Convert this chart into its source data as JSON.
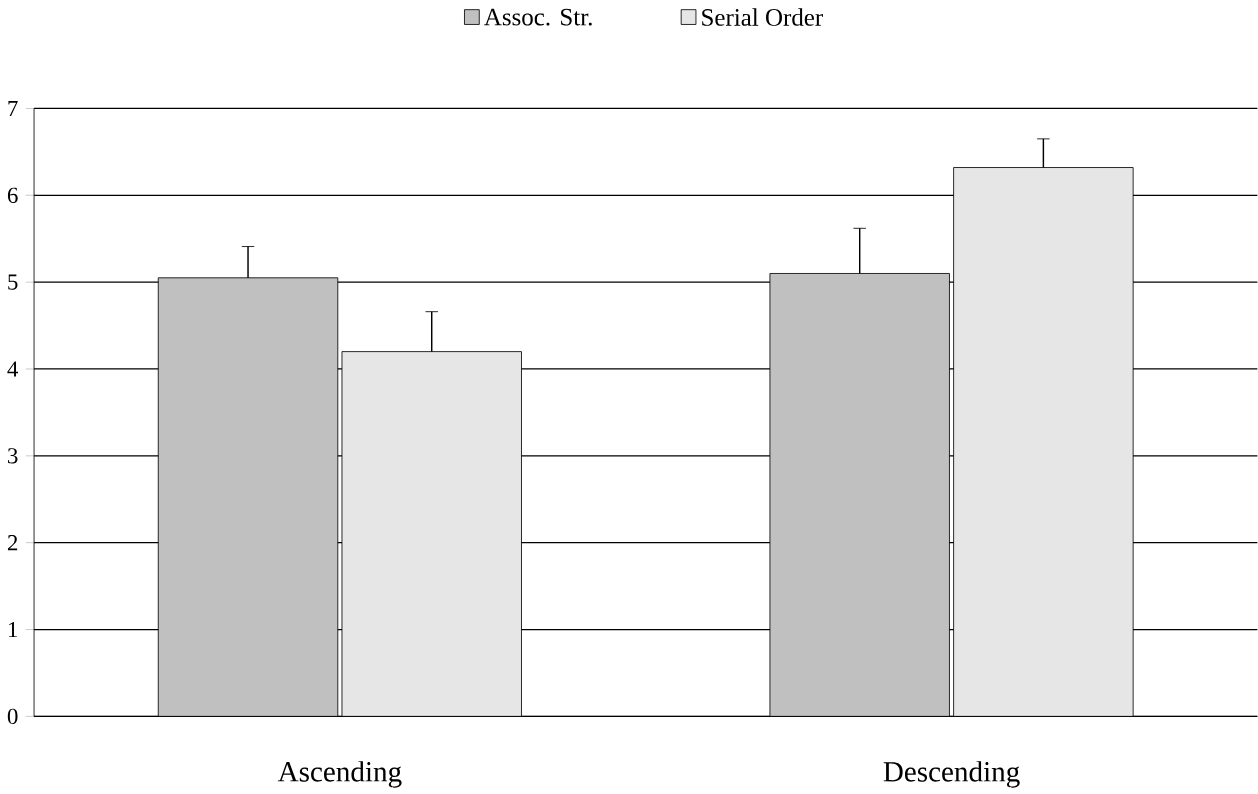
{
  "chart_data": {
    "type": "bar",
    "categories": [
      "Ascending",
      "Descending"
    ],
    "series": [
      {
        "name": "Assoc. Str.",
        "color": "#c0c0c0",
        "values": [
          5.05,
          5.1
        ],
        "errors": [
          0.36,
          0.52
        ]
      },
      {
        "name": "Serial Order",
        "color": "#e6e6e6",
        "values": [
          4.2,
          6.32
        ],
        "errors": [
          0.46,
          0.33
        ]
      }
    ],
    "ylim": [
      0,
      7
    ],
    "yticks": [
      0,
      1,
      2,
      3,
      4,
      5,
      6,
      7
    ],
    "grid": "y",
    "legend": "top"
  }
}
